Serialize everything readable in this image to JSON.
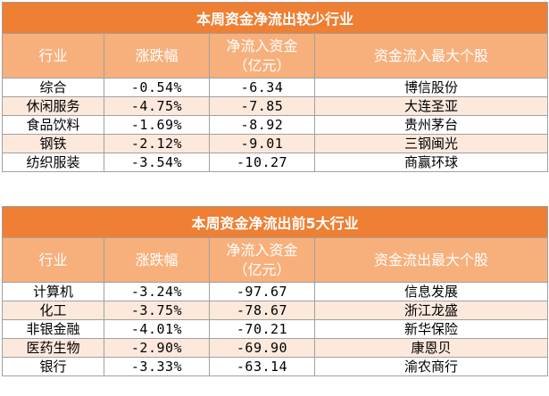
{
  "table1": {
    "title": "本周资金净流出较少行业",
    "headers": [
      "行业",
      "涨跌幅",
      "净流入资金\n（亿元）",
      "资金流入最大个股"
    ],
    "rows": [
      [
        "综合",
        "-0.54%",
        "-6.34",
        "博信股份"
      ],
      [
        "休闲服务",
        "-4.75%",
        "-7.85",
        "大连圣亚"
      ],
      [
        "食品饮料",
        "-1.69%",
        "-8.92",
        "贵州茅台"
      ],
      [
        "钢铁",
        "-2.12%",
        "-9.01",
        "三钢闽光"
      ],
      [
        "纺织服装",
        "-3.54%",
        "-10.27",
        "商赢环球"
      ]
    ]
  },
  "table2": {
    "title": "本周资金净流出前5大行业",
    "headers": [
      "行业",
      "涨跌幅",
      "净流入资金\n（亿元）",
      "资金流出最大个股"
    ],
    "rows": [
      [
        "计算机",
        "-3.24%",
        "-97.67",
        "信息发展"
      ],
      [
        "化工",
        "-3.75%",
        "-78.67",
        "浙江龙盛"
      ],
      [
        "非银金融",
        "-4.01%",
        "-70.21",
        "新华保险"
      ],
      [
        "医药生物",
        "-2.90%",
        "-69.90",
        "康恩贝"
      ],
      [
        "银行",
        "-3.33%",
        "-63.14",
        "渝农商行"
      ]
    ]
  }
}
